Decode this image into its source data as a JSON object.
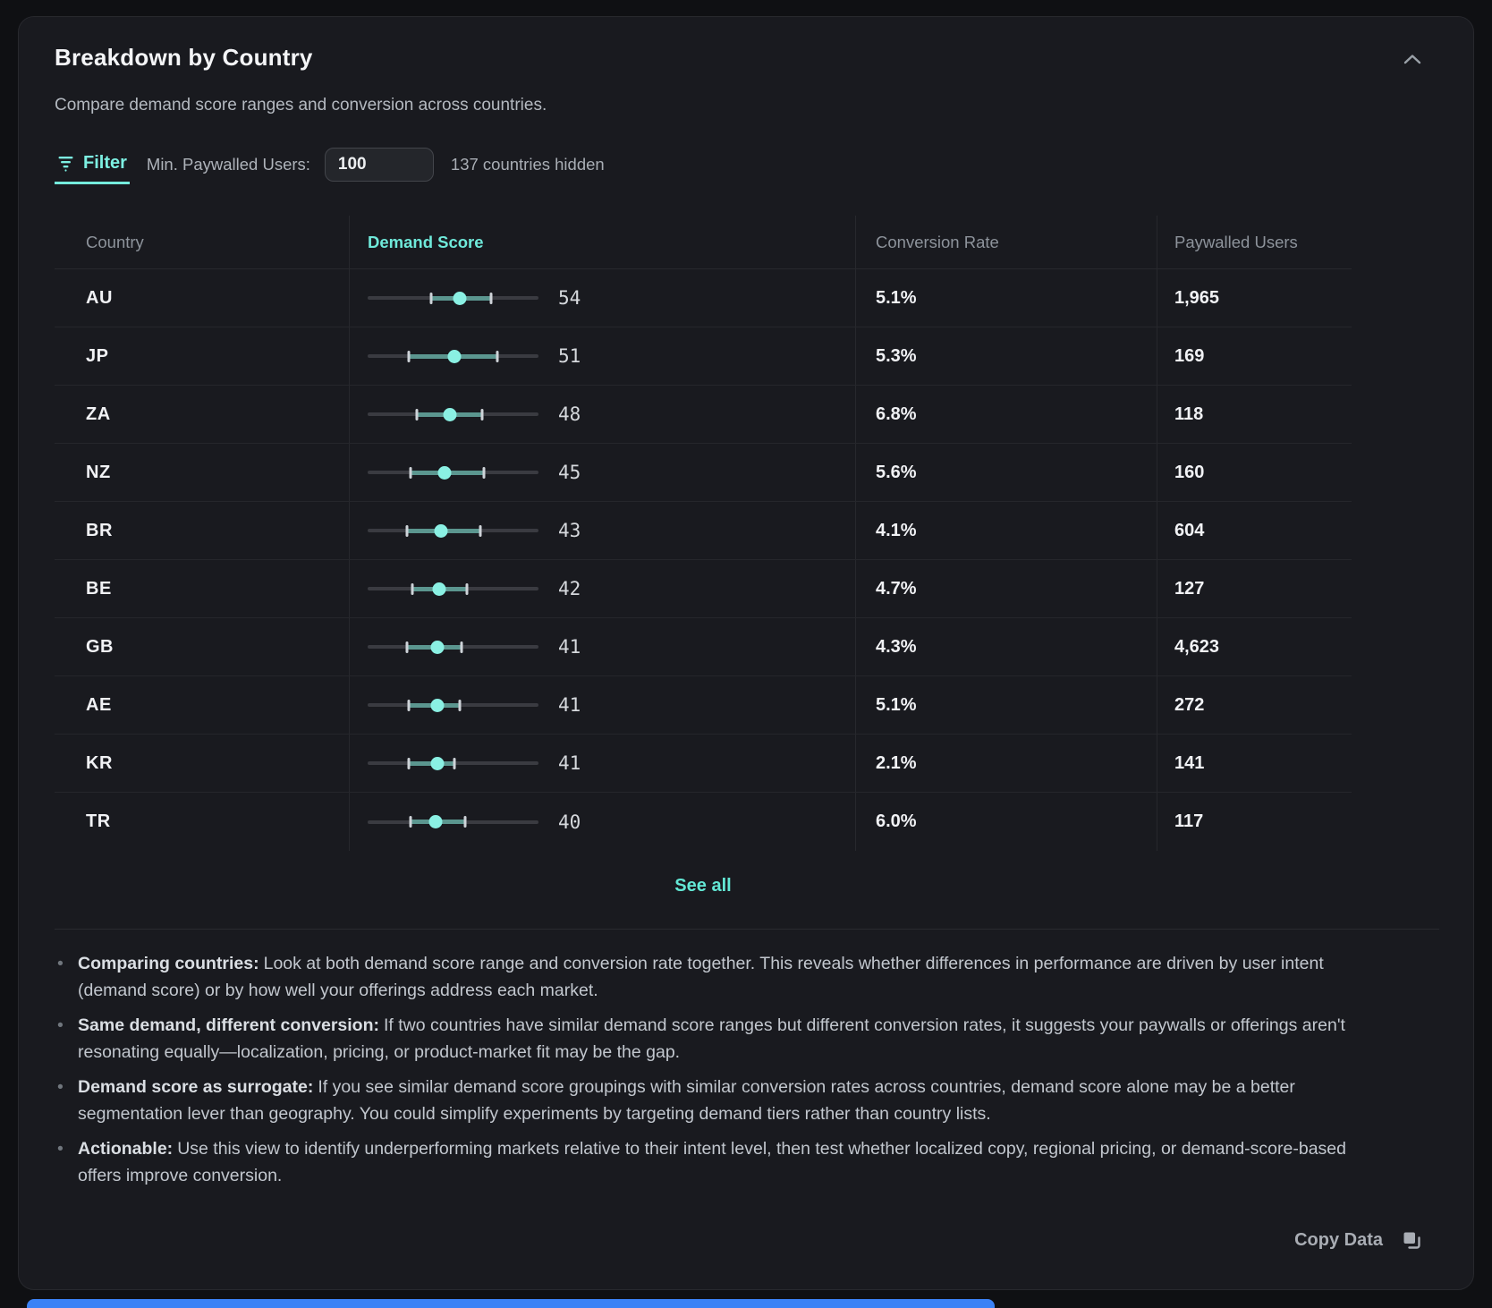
{
  "card": {
    "title": "Breakdown by Country",
    "subtitle": "Compare demand score ranges and conversion across countries."
  },
  "filter": {
    "label": "Filter",
    "min_label": "Min. Paywalled Users:",
    "input_value": "100",
    "hidden_text": "137 countries hidden"
  },
  "table": {
    "columns": [
      "Country",
      "Demand Score",
      "Conversion Rate",
      "Paywalled Users"
    ],
    "sorted_column": "Demand Score",
    "score_scale": [
      0,
      100
    ],
    "rows": [
      {
        "country": "AU",
        "score": 54,
        "min": 37,
        "max": 72,
        "conversion": "5.1%",
        "paywalled": "1,965"
      },
      {
        "country": "JP",
        "score": 51,
        "min": 24,
        "max": 76,
        "conversion": "5.3%",
        "paywalled": "169"
      },
      {
        "country": "ZA",
        "score": 48,
        "min": 29,
        "max": 67,
        "conversion": "6.8%",
        "paywalled": "118"
      },
      {
        "country": "NZ",
        "score": 45,
        "min": 25,
        "max": 68,
        "conversion": "5.6%",
        "paywalled": "160"
      },
      {
        "country": "BR",
        "score": 43,
        "min": 23,
        "max": 66,
        "conversion": "4.1%",
        "paywalled": "604"
      },
      {
        "country": "BE",
        "score": 42,
        "min": 26,
        "max": 58,
        "conversion": "4.7%",
        "paywalled": "127"
      },
      {
        "country": "GB",
        "score": 41,
        "min": 23,
        "max": 55,
        "conversion": "4.3%",
        "paywalled": "4,623"
      },
      {
        "country": "AE",
        "score": 41,
        "min": 24,
        "max": 54,
        "conversion": "5.1%",
        "paywalled": "272"
      },
      {
        "country": "KR",
        "score": 41,
        "min": 24,
        "max": 51,
        "conversion": "2.1%",
        "paywalled": "141"
      },
      {
        "country": "TR",
        "score": 40,
        "min": 25,
        "max": 57,
        "conversion": "6.0%",
        "paywalled": "117"
      }
    ]
  },
  "see_all": "See all",
  "notes": [
    {
      "lead": "Comparing countries:",
      "text": "Look at both demand score range and conversion rate together. This reveals whether differences in performance are driven by user intent (demand score) or by how well your offerings address each market."
    },
    {
      "lead": "Same demand, different conversion:",
      "text": "If two countries have similar demand score ranges but different conversion rates, it suggests your paywalls or offerings aren't resonating equally—localization, pricing, or product-market fit may be the gap."
    },
    {
      "lead": "Demand score as surrogate:",
      "text": "If you see similar demand score groupings with similar conversion rates across countries, demand score alone may be a better segmentation lever than geography. You could simplify experiments by targeting demand tiers rather than country lists."
    },
    {
      "lead": "Actionable:",
      "text": "Use this view to identify underperforming markets relative to their intent level, then test whether localized copy, regional pricing, or demand-score-based offers improve conversion."
    }
  ],
  "footer": {
    "copy_label": "Copy Data"
  },
  "colors": {
    "accent_teal": "#74ecdc",
    "slider_dot": "#8af0e3",
    "slider_range": "#5b968f",
    "card_background": "#191a1f",
    "page_background": "#0f1013",
    "bottom_bar_blue": "#3b82f6"
  }
}
